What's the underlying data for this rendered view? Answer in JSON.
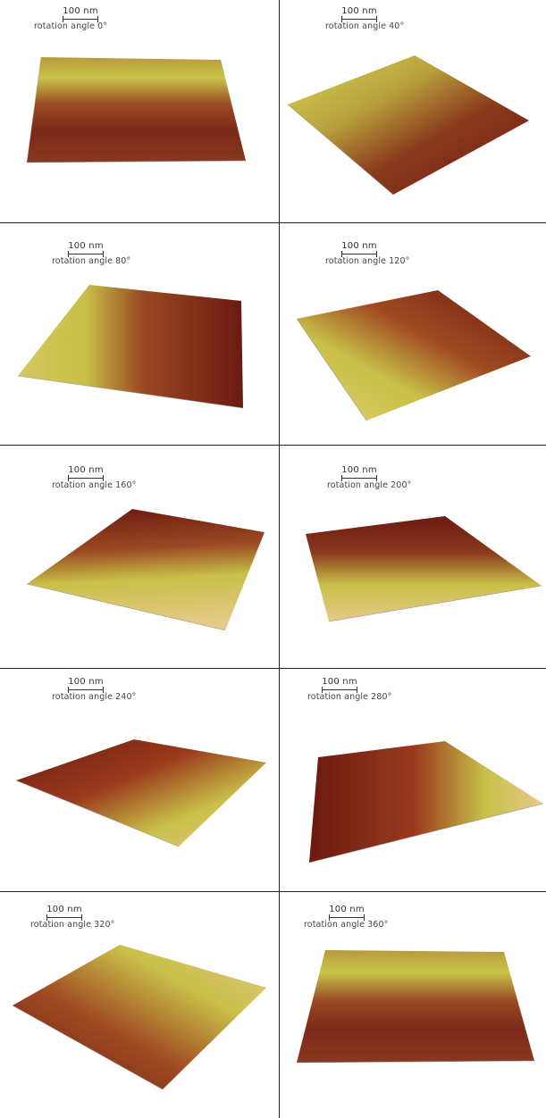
{
  "panels": [
    {
      "scale_label": "100 nm",
      "rotation_label": "rotation angle 0°"
    },
    {
      "scale_label": "100 nm",
      "rotation_label": "rotation angle 40°"
    },
    {
      "scale_label": "100 nm",
      "rotation_label": "rotation angle 80°"
    },
    {
      "scale_label": "100 nm",
      "rotation_label": "rotation angle 120°"
    },
    {
      "scale_label": "100 nm",
      "rotation_label": "rotation angle 160°"
    },
    {
      "scale_label": "100 nm",
      "rotation_label": "rotation angle 200°"
    },
    {
      "scale_label": "100 nm",
      "rotation_label": "rotation angle 240°"
    },
    {
      "scale_label": "100 nm",
      "rotation_label": "rotation angle 280°"
    },
    {
      "scale_label": "100 nm",
      "rotation_label": "rotation angle 320°"
    },
    {
      "scale_label": "100 nm",
      "rotation_label": "rotation angle 360°"
    }
  ],
  "colors": {
    "dark_red": "#6b1a12",
    "mid_red": "#9a3a1c",
    "olive": "#b8b43a",
    "yellow_green": "#d4e04a",
    "tan": "#e6c98a",
    "border": "#222222"
  }
}
